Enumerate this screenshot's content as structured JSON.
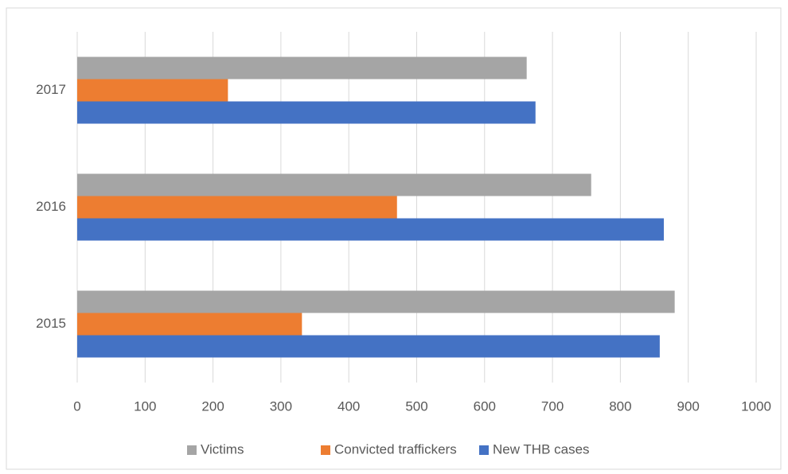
{
  "chart_data": {
    "type": "hbar",
    "categories": [
      "2015",
      "2016",
      "2017"
    ],
    "series": [
      {
        "name": "Victims",
        "color": "#a5a5a5",
        "values": [
          880,
          757,
          662
        ]
      },
      {
        "name": "Convicted traffickers",
        "color": "#ed7d31",
        "values": [
          331,
          471,
          222
        ]
      },
      {
        "name": "New THB cases",
        "color": "#4472c4",
        "values": [
          858,
          864,
          675
        ]
      }
    ],
    "xlim": [
      0,
      1000
    ],
    "xticks": [
      0,
      100,
      200,
      300,
      400,
      500,
      600,
      700,
      800,
      900,
      1000
    ],
    "grid": true,
    "legend": "bottom"
  }
}
